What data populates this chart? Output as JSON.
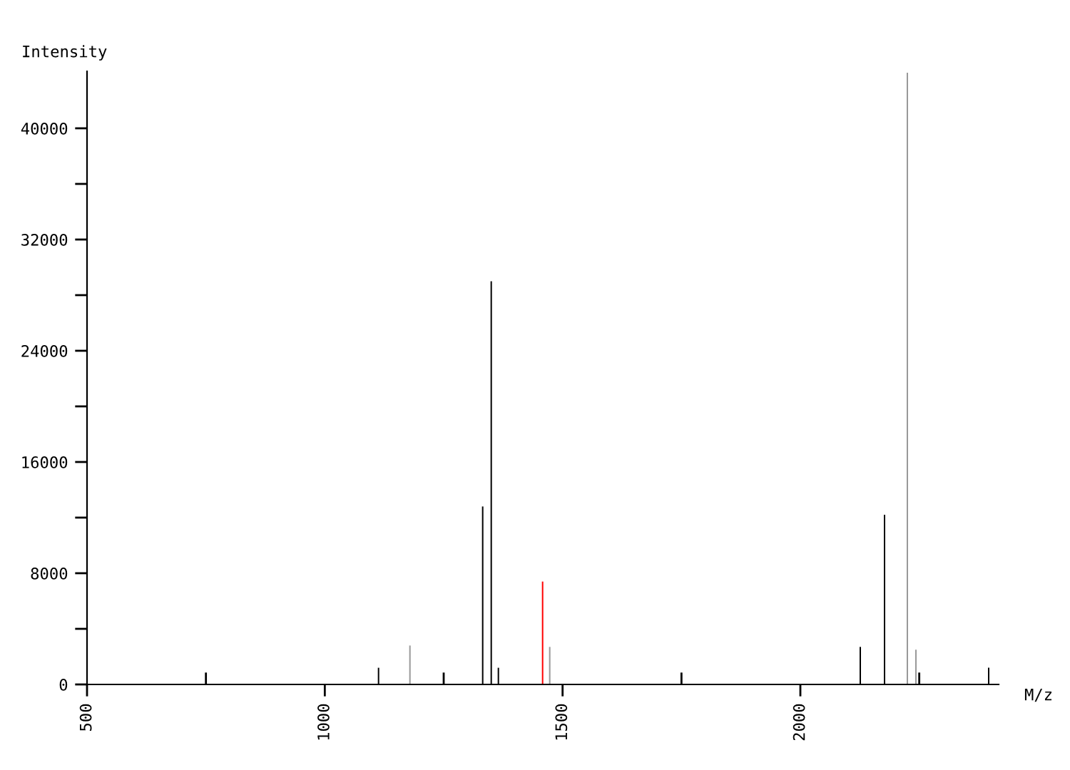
{
  "chart_data": {
    "type": "bar",
    "xlabel": "M/z",
    "ylabel": "Intensity",
    "x": [
      1113,
      1179,
      1332,
      1350,
      1365,
      1458,
      1473,
      2126,
      2177,
      2225,
      2243,
      2396
    ],
    "values": [
      1200,
      2800,
      12800,
      29000,
      1200,
      7400,
      2700,
      2700,
      12200,
      44000,
      2500,
      1200
    ],
    "colors": [
      "#000000",
      "#999999",
      "#000000",
      "#000000",
      "#000000",
      "#ff0000",
      "#999999",
      "#000000",
      "#000000",
      "#999999",
      "#999999",
      "#000000"
    ],
    "xlim": [
      500,
      2417
    ],
    "ylim": [
      0,
      44100
    ],
    "xticks": [
      500,
      {
        "value": 750,
        "label": null
      },
      1000,
      {
        "value": 1250,
        "label": null
      },
      1500,
      {
        "value": 1750,
        "label": null
      },
      2000,
      {
        "value": 2250,
        "label": null
      }
    ],
    "yticks": [
      0,
      {
        "value": 4000,
        "label": null
      },
      8000,
      {
        "value": 12000,
        "label": null
      },
      16000,
      {
        "value": 20000,
        "label": null
      },
      24000,
      {
        "value": 28000,
        "label": null
      },
      32000,
      {
        "value": 36000,
        "label": null
      },
      40000
    ],
    "grid": false
  }
}
